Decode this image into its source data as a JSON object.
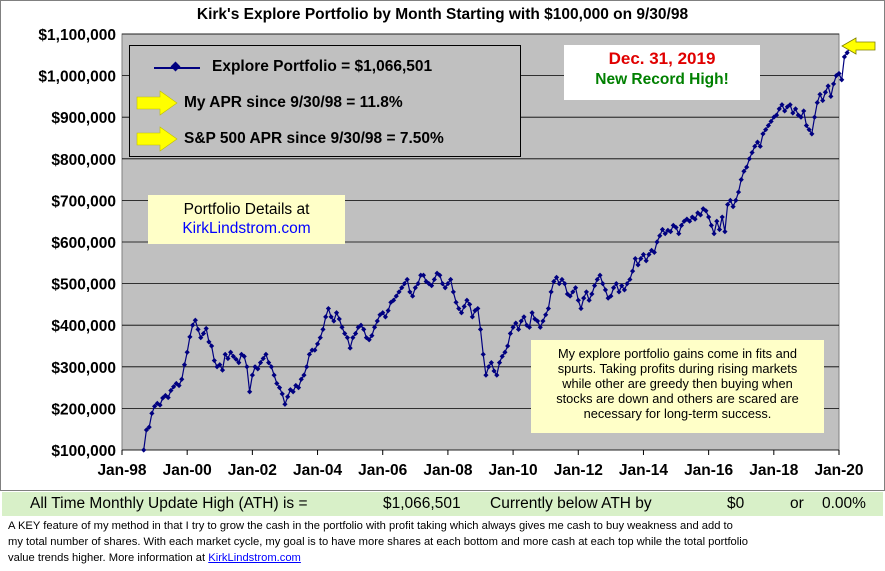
{
  "chart_data": {
    "type": "line",
    "title": "Kirk's Explore Portfolio by Month Starting with $100,000 on 9/30/98",
    "xlabel": "",
    "ylabel": "",
    "ylim": [
      100000,
      1100000
    ],
    "yticks": [
      "$100,000",
      "$200,000",
      "$300,000",
      "$400,000",
      "$500,000",
      "$600,000",
      "$700,000",
      "$800,000",
      "$900,000",
      "$1,000,000",
      "$1,100,000"
    ],
    "xticks": [
      "Jan-98",
      "Jan-00",
      "Jan-02",
      "Jan-04",
      "Jan-06",
      "Jan-08",
      "Jan-10",
      "Jan-12",
      "Jan-14",
      "Jan-16",
      "Jan-18",
      "Jan-20"
    ],
    "grid": true,
    "series": [
      {
        "name": "Explore Portfolio",
        "color": "#000080",
        "start": "1998-09",
        "frequency": "monthly",
        "values": [
          100000,
          148000,
          155000,
          188000,
          205000,
          212000,
          208000,
          225000,
          231000,
          226000,
          243000,
          252000,
          260000,
          255000,
          270000,
          305000,
          335000,
          372000,
          400000,
          412000,
          390000,
          370000,
          380000,
          392000,
          360000,
          350000,
          315000,
          300000,
          305000,
          292000,
          330000,
          320000,
          335000,
          325000,
          318000,
          310000,
          330000,
          325000,
          300000,
          240000,
          280000,
          300000,
          295000,
          310000,
          320000,
          330000,
          310000,
          300000,
          280000,
          260000,
          250000,
          235000,
          210000,
          228000,
          245000,
          240000,
          255000,
          250000,
          270000,
          280000,
          300000,
          330000,
          340000,
          340000,
          355000,
          370000,
          390000,
          420000,
          440000,
          420000,
          410000,
          430000,
          415000,
          395000,
          380000,
          370000,
          345000,
          370000,
          380000,
          395000,
          400000,
          390000,
          370000,
          365000,
          375000,
          395000,
          410000,
          425000,
          430000,
          420000,
          435000,
          455000,
          460000,
          470000,
          480000,
          490000,
          500000,
          510000,
          480000,
          470000,
          490000,
          500000,
          520000,
          520000,
          505000,
          500000,
          495000,
          510000,
          525000,
          520000,
          500000,
          490000,
          500000,
          510000,
          480000,
          455000,
          440000,
          430000,
          445000,
          460000,
          450000,
          420000,
          435000,
          440000,
          390000,
          330000,
          280000,
          300000,
          310000,
          290000,
          280000,
          310000,
          325000,
          335000,
          350000,
          380000,
          395000,
          405000,
          390000,
          410000,
          420000,
          400000,
          395000,
          430000,
          415000,
          410000,
          395000,
          410000,
          425000,
          440000,
          480000,
          505000,
          515000,
          500000,
          510000,
          500000,
          475000,
          470000,
          480000,
          490000,
          460000,
          440000,
          465000,
          480000,
          460000,
          475000,
          495000,
          510000,
          520000,
          500000,
          485000,
          465000,
          470000,
          490000,
          500000,
          480000,
          495000,
          485000,
          500000,
          510000,
          530000,
          560000,
          545000,
          560000,
          570000,
          555000,
          570000,
          580000,
          575000,
          600000,
          615000,
          630000,
          620000,
          628000,
          625000,
          640000,
          635000,
          620000,
          640000,
          650000,
          655000,
          650000,
          660000,
          655000,
          670000,
          665000,
          680000,
          675000,
          660000,
          640000,
          620000,
          650000,
          630000,
          660000,
          625000,
          690000,
          700000,
          685000,
          700000,
          720000,
          750000,
          770000,
          780000,
          800000,
          815000,
          830000,
          840000,
          830000,
          860000,
          870000,
          880000,
          890000,
          900000,
          905000,
          920000,
          930000,
          915000,
          925000,
          930000,
          910000,
          920000,
          905000,
          900000,
          915000,
          880000,
          870000,
          860000,
          900000,
          935000,
          955000,
          940000,
          960000,
          975000,
          950000,
          980000,
          1000000,
          1005000,
          990000,
          1045000,
          1055000,
          1066501
        ]
      }
    ]
  },
  "legend": {
    "portfolio_label": "Explore Portfolio  =  $1,066,501",
    "my_apr": "My APR since 9/30/98 =  11.8%",
    "sp_apr": "S&P 500 APR since 9/30/98 =  7.50%"
  },
  "record": {
    "date": "Dec. 31, 2019",
    "text": "New Record High!"
  },
  "details": {
    "label": "Portfolio Details at",
    "link": "KirkLindstrom.com"
  },
  "note": [
    "My explore portfolio gains come in fits and",
    "spurts. Taking profits during rising markets",
    "while other are greedy then buying when",
    "stocks are down and others are scared are",
    "necessary for long-term success."
  ],
  "ath": {
    "label": "All Time Monthly Update High (ATH) is =",
    "value": "$1,066,501",
    "below_label": "Currently below ATH by",
    "below_value": "$0",
    "or": "or",
    "below_pct": "0.00%"
  },
  "footer": {
    "line1": "A KEY feature of my method in that I try to grow the cash in the portfolio with profit taking which always gives me cash to buy weakness and add to",
    "line2": "my total number of shares.  With each market cycle, my goal is to have more shares at each bottom and more cash at each top while the total portfolio",
    "line3_prefix": "value trends higher.          More information at ",
    "line3_link": "KirkLindstrom.com"
  },
  "colors": {
    "plot_bg": "#c0c0c0",
    "line": "#000080",
    "arrow": "#ffff00",
    "note_bg": "#ffffc8",
    "ath_bg": "#d8f0c8"
  }
}
